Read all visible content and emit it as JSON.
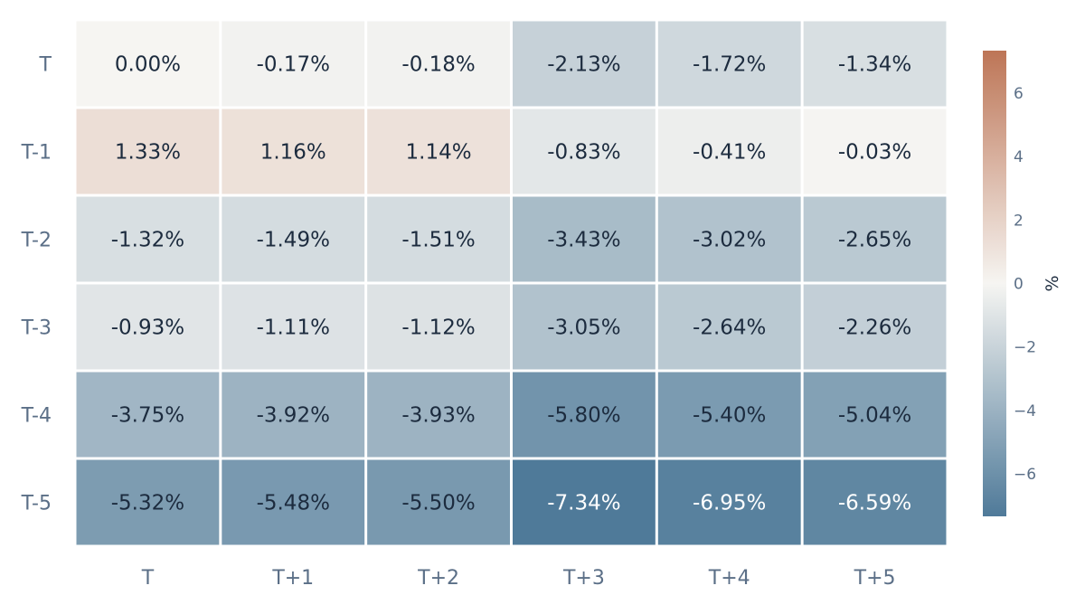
{
  "chart_data": {
    "type": "heatmap",
    "title": "",
    "xlabel": "",
    "ylabel": "",
    "x_categories": [
      "T",
      "T+1",
      "T+2",
      "T+3",
      "T+4",
      "T+5"
    ],
    "y_categories": [
      "T",
      "T-1",
      "T-2",
      "T-3",
      "T-4",
      "T-5"
    ],
    "values": [
      [
        0.0,
        -0.17,
        -0.18,
        -2.13,
        -1.72,
        -1.34
      ],
      [
        1.33,
        1.16,
        1.14,
        -0.83,
        -0.41,
        -0.03
      ],
      [
        -1.32,
        -1.49,
        -1.51,
        -3.43,
        -3.02,
        -2.65
      ],
      [
        -0.93,
        -1.11,
        -1.12,
        -3.05,
        -2.64,
        -2.26
      ],
      [
        -3.75,
        -3.92,
        -3.93,
        -5.8,
        -5.4,
        -5.04
      ],
      [
        -5.32,
        -5.48,
        -5.5,
        -7.34,
        -6.95,
        -6.59
      ]
    ],
    "cell_labels": [
      [
        "0.00%",
        "-0.17%",
        "-0.18%",
        "-2.13%",
        "-1.72%",
        "-1.34%"
      ],
      [
        "1.33%",
        "1.16%",
        "1.14%",
        "-0.83%",
        "-0.41%",
        "-0.03%"
      ],
      [
        "-1.32%",
        "-1.49%",
        "-1.51%",
        "-3.43%",
        "-3.02%",
        "-2.65%"
      ],
      [
        "-0.93%",
        "-1.11%",
        "-1.12%",
        "-3.05%",
        "-2.64%",
        "-2.26%"
      ],
      [
        "-3.75%",
        "-3.92%",
        "-3.93%",
        "-5.80%",
        "-5.40%",
        "-5.04%"
      ],
      [
        "-5.32%",
        "-5.48%",
        "-5.50%",
        "-7.34%",
        "-6.95%",
        "-6.59%"
      ]
    ],
    "colorbar": {
      "label": "%",
      "range": [
        -7.34,
        7.34
      ],
      "ticks": [
        6,
        4,
        2,
        0,
        -2,
        -4,
        -6
      ],
      "tick_labels": [
        "6",
        "4",
        "2",
        "0",
        "−2",
        "−4",
        "−6"
      ],
      "colors": {
        "negative": "#4f7a99",
        "neutral": "#f6f5f2",
        "positive": "#bd7556"
      }
    },
    "grid": false,
    "legend": "colorbar-right"
  }
}
